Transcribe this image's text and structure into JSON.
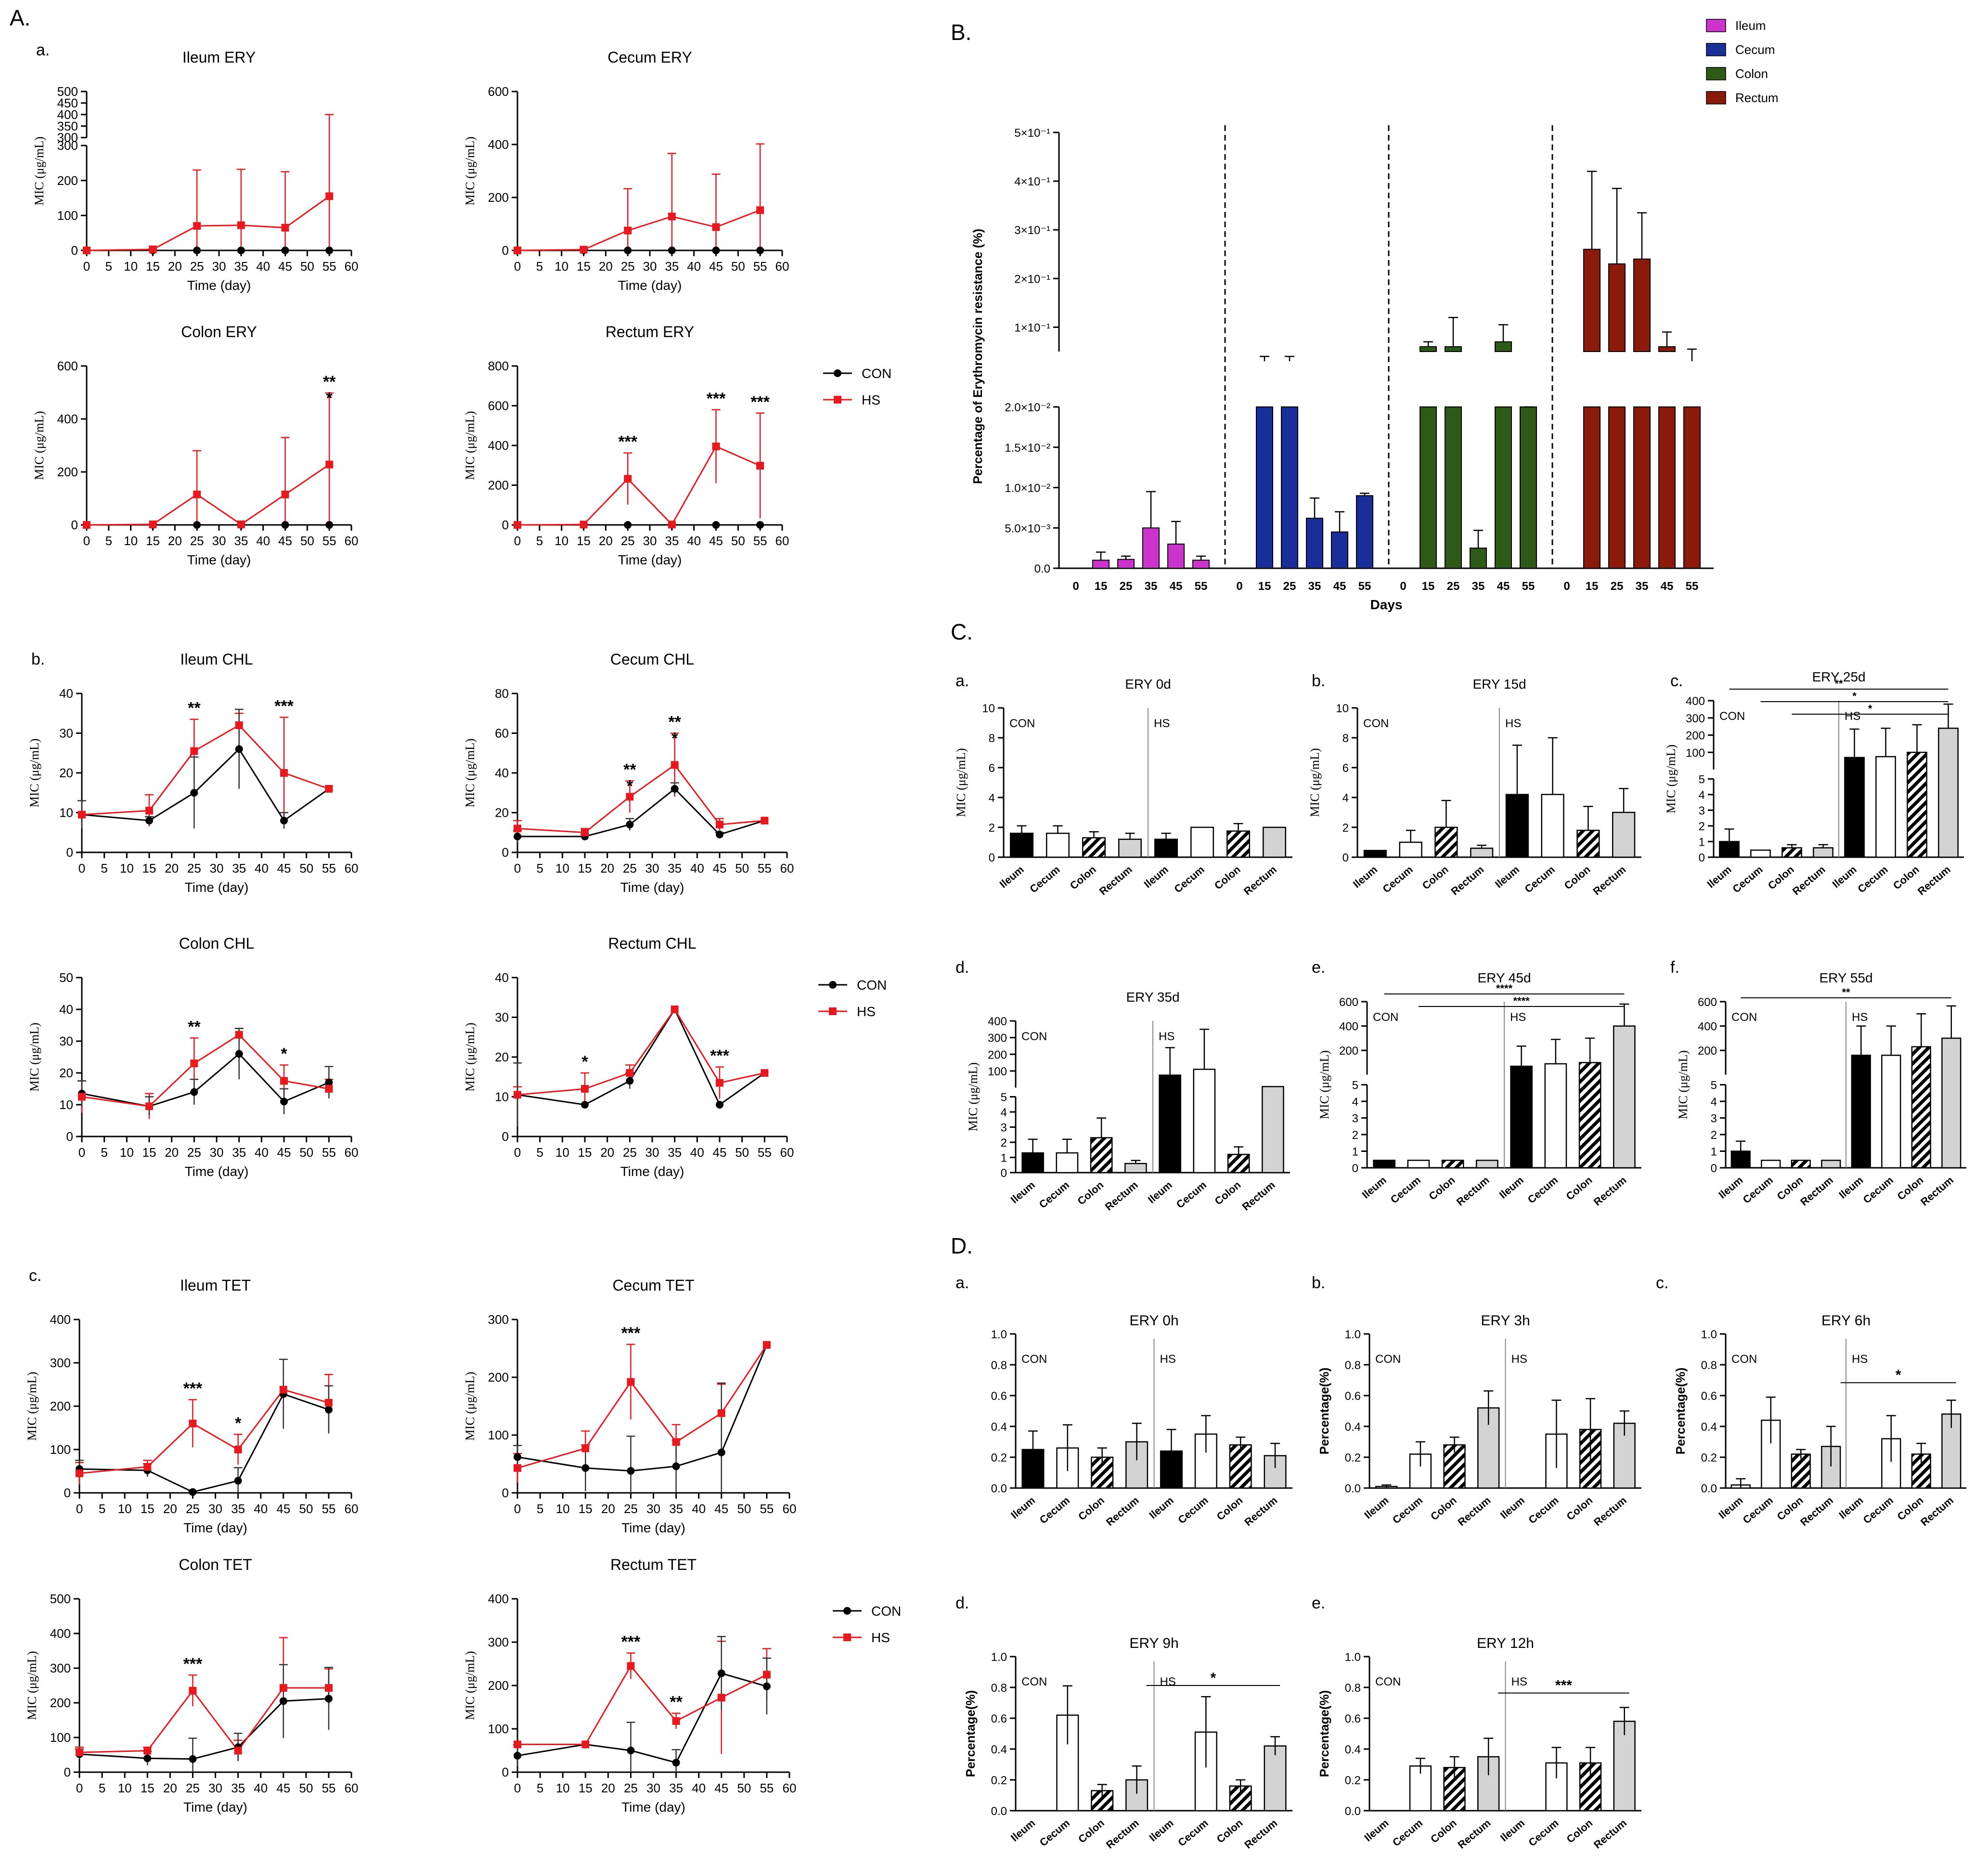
{
  "panels": {
    "A": "A.",
    "B": "B.",
    "C": "C.",
    "D": "D."
  },
  "sublabels": {
    "Aa": "a.",
    "Ab": "b.",
    "Ac": "c.",
    "Ca": "a.",
    "Cb": "b.",
    "Cc": "c.",
    "Cd": "d.",
    "Ce": "e.",
    "Cf": "f.",
    "Da": "a.",
    "Db": "b.",
    "Dc": "c.",
    "Dd": "d.",
    "De": "e."
  },
  "colors": {
    "con": "#000000",
    "hs": "#e8191e",
    "ileum": "#cc33cc",
    "cecum": "#1a2e99",
    "colon": "#2d5a17",
    "rectum": "#8b1a0a",
    "grey": "#d3d3d3"
  },
  "legends": [
    {
      "con": "CON",
      "hs": "HS"
    },
    {
      "con": "CON",
      "hs": "HS"
    },
    {
      "con": "CON",
      "hs": "HS"
    }
  ],
  "line_charts": [
    {
      "id": "ileum-ery",
      "title": "Ileum ERY",
      "xlabel": "Time  (day)",
      "ylabel": "MIC  (μg/mL)",
      "yticks": [
        "0",
        "100",
        "200",
        "300",
        "300",
        "350",
        "400",
        "450",
        "500"
      ],
      "ybreak": true,
      "con": [
        0,
        0,
        0,
        0,
        0,
        0
      ],
      "hs": [
        0,
        3,
        70,
        72,
        65,
        155
      ],
      "hs_err": [
        0,
        2,
        160,
        160,
        160,
        245
      ],
      "con_err": [
        0,
        0,
        0,
        0,
        0,
        0
      ],
      "stars": []
    },
    {
      "id": "cecum-ery",
      "title": "Cecum ERY",
      "xlabel": "Time  (day)",
      "ylabel": "MIC  (μg/mL)",
      "yticks": [
        "0",
        "200",
        "400",
        "600"
      ],
      "ymax": 600,
      "con": [
        0,
        0,
        0,
        0,
        0,
        0
      ],
      "hs": [
        0,
        3,
        75,
        128,
        88,
        152
      ],
      "hs_err": [
        0,
        2,
        158,
        238,
        200,
        250
      ],
      "con_err": [
        0,
        0,
        0,
        0,
        0,
        0
      ],
      "stars": []
    },
    {
      "id": "colon-ery",
      "title": "Colon ERY",
      "xlabel": "Time  (day)",
      "ylabel": "MIC  (μg/mL)",
      "yticks": [
        "0",
        "200",
        "400",
        "600"
      ],
      "ymax": 600,
      "con": [
        0,
        0,
        0,
        0,
        0,
        0
      ],
      "hs": [
        0,
        2,
        115,
        2,
        115,
        228
      ],
      "hs_err": [
        0,
        1,
        165,
        1,
        215,
        270
      ],
      "con_err": [
        0,
        0,
        0,
        0,
        0,
        0
      ],
      "stars": [
        {
          "i": 5,
          "t": "**"
        },
        {
          "i": 5,
          "t": "*"
        }
      ]
    },
    {
      "id": "rectum-ery",
      "title": "Rectum ERY",
      "xlabel": "Time  (day)",
      "ylabel": "MIC  (μg/mL)",
      "yticks": [
        "0",
        "200",
        "400",
        "600",
        "800"
      ],
      "ymax": 800,
      "con": [
        0,
        0,
        0,
        0,
        0,
        0
      ],
      "hs": [
        0,
        2,
        232,
        2,
        395,
        298
      ],
      "hs_err": [
        0,
        1,
        130,
        1,
        185,
        265
      ],
      "con_err": [
        0,
        0,
        0,
        0,
        0,
        0
      ],
      "stars": [
        {
          "i": 2,
          "t": "***"
        },
        {
          "i": 4,
          "t": "***"
        },
        {
          "i": 5,
          "t": "***"
        }
      ]
    },
    {
      "id": "ileum-chl",
      "title": "Ileum CHL",
      "xlabel": "Time  (day)",
      "ylabel": "MIC  (μg/mL)",
      "yticks": [
        "0",
        "10",
        "20",
        "30",
        "40"
      ],
      "ymax": 40,
      "con": [
        9.5,
        8,
        15,
        26,
        8,
        16
      ],
      "hs": [
        9.5,
        10.5,
        25.5,
        32,
        20,
        16
      ],
      "hs_err": [
        3.5,
        4,
        8,
        3,
        14,
        0
      ],
      "con_err": [
        3.5,
        1,
        9,
        10,
        2,
        0
      ],
      "stars": [
        {
          "i": 2,
          "t": "**"
        },
        {
          "i": 4,
          "t": "***"
        }
      ]
    },
    {
      "id": "cecum-chl",
      "title": "Cecum CHL",
      "xlabel": "Time  (day)",
      "ylabel": "MIC  (μg/mL)",
      "yticks": [
        "0",
        "20",
        "40",
        "60",
        "80"
      ],
      "ymax": 80,
      "con": [
        8,
        8,
        14,
        32,
        9,
        16
      ],
      "hs": [
        12,
        10,
        28,
        44,
        14,
        16
      ],
      "hs_err": [
        4,
        2,
        8,
        16,
        3,
        0
      ],
      "con_err": [
        3,
        1,
        3,
        3,
        1,
        0
      ],
      "stars": [
        {
          "i": 2,
          "t": "**"
        },
        {
          "i": 2,
          "t": "*"
        },
        {
          "i": 3,
          "t": "**"
        },
        {
          "i": 3,
          "t": "*"
        }
      ]
    },
    {
      "id": "colon-chl",
      "title": "Colon CHL",
      "xlabel": "Time  (day)",
      "ylabel": "MIC  (μg/mL)",
      "yticks": [
        "0",
        "10",
        "20",
        "30",
        "40",
        "50"
      ],
      "ymax": 50,
      "con": [
        13.5,
        9.5,
        14,
        26,
        11,
        17
      ],
      "hs": [
        12.5,
        9.5,
        23,
        32,
        17.5,
        15
      ],
      "hs_err": [
        5,
        4,
        8,
        2,
        5,
        3
      ],
      "con_err": [
        4,
        3,
        4,
        8,
        4,
        5
      ],
      "stars": [
        {
          "i": 2,
          "t": "**"
        },
        {
          "i": 4,
          "t": "*"
        }
      ]
    },
    {
      "id": "rectum-chl",
      "title": "Rectum CHL",
      "xlabel": "Time  (day)",
      "ylabel": "MIC  (μg/mL)",
      "yticks": [
        "0",
        "10",
        "20",
        "30",
        "40"
      ],
      "ymax": 40,
      "con": [
        10.5,
        8,
        14,
        32,
        8,
        16
      ],
      "hs": [
        10.5,
        12,
        16,
        32,
        13.5,
        16
      ],
      "hs_err": [
        2,
        4,
        2,
        0,
        4,
        0
      ],
      "con_err": [
        8,
        0,
        2,
        0,
        0,
        0
      ],
      "stars": [
        {
          "i": 1,
          "t": "*"
        },
        {
          "i": 4,
          "t": "***"
        }
      ]
    },
    {
      "id": "ileum-tet",
      "title": "Ileum TET",
      "xlabel": "Time  (day)",
      "ylabel": "MIC  (μg/mL)",
      "yticks": [
        "0",
        "100",
        "200",
        "300",
        "400"
      ],
      "ymax": 400,
      "con": [
        55,
        52,
        2,
        28,
        228,
        192
      ],
      "hs": [
        45,
        60,
        160,
        100,
        238,
        208
      ],
      "hs_err": [
        25,
        15,
        55,
        35,
        70,
        65
      ],
      "con_err": [
        20,
        15,
        2,
        30,
        80,
        55
      ],
      "stars": [
        {
          "i": 2,
          "t": "***"
        },
        {
          "i": 3,
          "t": "*"
        }
      ]
    },
    {
      "id": "cecum-tet",
      "title": "Cecum TET",
      "xlabel": "Time  (day)",
      "ylabel": "MIC  (μg/mL)",
      "yticks": [
        "0",
        "100",
        "200",
        "300"
      ],
      "ymax": 300,
      "con": [
        62,
        43,
        38,
        46,
        70,
        256
      ],
      "hs": [
        43,
        77,
        192,
        88,
        138,
        256
      ],
      "hs_err": [
        25,
        30,
        65,
        30,
        50,
        0
      ],
      "con_err": [
        20,
        40,
        60,
        45,
        120,
        0
      ],
      "stars": [
        {
          "i": 2,
          "t": "***"
        }
      ]
    },
    {
      "id": "colon-tet",
      "title": "Colon TET",
      "xlabel": "Time  (day)",
      "ylabel": "MIC  (μg/mL)",
      "yticks": [
        "0",
        "100",
        "200",
        "300",
        "400",
        "500"
      ],
      "ymax": 500,
      "con": [
        52,
        40,
        38,
        72,
        205,
        212
      ],
      "hs": [
        57,
        62,
        235,
        62,
        243,
        243
      ],
      "hs_err": [
        15,
        10,
        45,
        30,
        145,
        55
      ],
      "con_err": [
        15,
        20,
        60,
        40,
        105,
        90
      ],
      "stars": [
        {
          "i": 2,
          "t": "***"
        }
      ]
    },
    {
      "id": "rectum-tet",
      "title": "Rectum TET",
      "xlabel": "Time  (day)",
      "ylabel": "MIC  (μg/mL)",
      "yticks": [
        "0",
        "100",
        "200",
        "300",
        "400"
      ],
      "ymax": 400,
      "con": [
        38,
        64,
        50,
        22,
        228,
        198
      ],
      "hs": [
        64,
        64,
        245,
        118,
        172,
        225
      ],
      "hs_err": [
        0,
        0,
        30,
        18,
        130,
        60
      ],
      "con_err": [
        25,
        0,
        65,
        30,
        85,
        65
      ],
      "stars": [
        {
          "i": 2,
          "t": "***"
        },
        {
          "i": 3,
          "t": "**"
        }
      ]
    }
  ],
  "line_xticks": [
    "0",
    "5",
    "10",
    "15",
    "20",
    "25",
    "30",
    "35",
    "40",
    "45",
    "50",
    "55",
    "60"
  ],
  "bar_b": {
    "ylabel": "Percentage of Erythromycin resistance (%)",
    "xlabel": "Days",
    "xticks": [
      "0",
      "15",
      "25",
      "35",
      "45",
      "55"
    ],
    "lower_ticks": [
      "0.0",
      "5.0×10⁻³",
      "1.0×10⁻²",
      "1.5×10⁻²",
      "2.0×10⁻²"
    ],
    "upper_ticks": [
      "1×10⁻¹",
      "2×10⁻¹",
      "3×10⁻¹",
      "4×10⁻¹",
      "5×10⁻¹"
    ],
    "legend": [
      "Ileum",
      "Cecum",
      "Colon",
      "Rectum"
    ],
    "groups": [
      {
        "name": "Ileum",
        "values": [
          0,
          0.001,
          0.0011,
          0.005,
          0.003,
          0.001
        ],
        "err": [
          0,
          0.001,
          0.0004,
          0.0045,
          0.0028,
          0.0005
        ]
      },
      {
        "name": "Cecum",
        "values": [
          0,
          0.03,
          0.03,
          0.0062,
          0.0045,
          0.009
        ],
        "err": [
          0,
          0.01,
          0.01,
          0.0025,
          0.0025,
          0.0003
        ]
      },
      {
        "name": "Colon",
        "values": [
          0,
          0.06,
          0.06,
          0.0025,
          0.07,
          0.02
        ],
        "err": [
          0,
          0.01,
          0.06,
          0.0022,
          0.035,
          0.008
        ]
      },
      {
        "name": "Rectum",
        "values": [
          0,
          0.26,
          0.23,
          0.24,
          0.06,
          0.03
        ],
        "err": [
          0,
          0.16,
          0.155,
          0.095,
          0.03,
          0.025
        ]
      }
    ]
  },
  "bar_c": [
    {
      "id": "ery-0d",
      "title": "ERY 0d",
      "ylabel": "MIC  (μg/mL)",
      "broken": false,
      "yticks": [
        "0",
        "2",
        "4",
        "6",
        "8",
        "10"
      ],
      "ymax": 10,
      "values": [
        1.6,
        1.6,
        1.3,
        1.2,
        1.2,
        2.0,
        1.75,
        2.0
      ],
      "err": [
        0.5,
        0.5,
        0.4,
        0.4,
        0.4,
        0,
        0.5,
        0
      ],
      "sig": []
    },
    {
      "id": "ery-15d",
      "title": "ERY 15d",
      "ylabel": "MIC  (μg/mL)",
      "broken": false,
      "yticks": [
        "0",
        "2",
        "4",
        "6",
        "8",
        "10"
      ],
      "ymax": 10,
      "values": [
        0.45,
        1.0,
        2.0,
        0.6,
        4.2,
        4.2,
        1.8,
        3.0
      ],
      "err": [
        0,
        0.8,
        1.8,
        0.2,
        3.3,
        3.8,
        1.6,
        1.6
      ],
      "sig": []
    },
    {
      "id": "ery-25d",
      "title": "ERY 25d",
      "ylabel": "MIC  (μg/mL)",
      "broken": true,
      "yticks_low": [
        "0",
        "1",
        "2",
        "3",
        "4",
        "5"
      ],
      "yticks_high": [
        "100",
        "200",
        "300",
        "400"
      ],
      "values": [
        1.0,
        0.45,
        0.6,
        0.6,
        70,
        75,
        100,
        240
      ],
      "err": [
        0.8,
        0,
        0.2,
        0.2,
        165,
        165,
        160,
        140
      ],
      "sig": [
        {
          "a": 0,
          "b": 7,
          "t": "**"
        },
        {
          "a": 1,
          "b": 7,
          "t": "*"
        },
        {
          "a": 2,
          "b": 7,
          "t": "*"
        }
      ]
    },
    {
      "id": "ery-35d",
      "title": "ERY 35d",
      "ylabel": "MIC  (μg/mL)",
      "broken": true,
      "yticks_low": [
        "0",
        "1",
        "2",
        "3",
        "4",
        "5"
      ],
      "yticks_high": [
        "100",
        "200",
        "300",
        "400"
      ],
      "values": [
        1.3,
        1.3,
        2.3,
        0.6,
        75,
        110,
        1.2,
        6.5
      ],
      "err": [
        0.9,
        0.9,
        1.3,
        0.2,
        165,
        240,
        0.5,
        0
      ],
      "sig": []
    },
    {
      "id": "ery-45d",
      "title": "ERY 45d",
      "ylabel": "MIC  (μg/mL)",
      "broken": true,
      "yticks_low": [
        "0",
        "1",
        "2",
        "3",
        "4",
        "5"
      ],
      "yticks_high": [
        "200",
        "400",
        "600"
      ],
      "values": [
        0.45,
        0.45,
        0.45,
        0.45,
        70,
        90,
        100,
        400
      ],
      "err": [
        0,
        0,
        0,
        0,
        165,
        200,
        200,
        180
      ],
      "sig": [
        {
          "a": 0,
          "b": 7,
          "t": "****"
        },
        {
          "a": 1,
          "b": 7,
          "t": "****"
        }
      ]
    },
    {
      "id": "ery-55d",
      "title": "ERY 55d",
      "ylabel": "MIC  (μg/mL)",
      "broken": true,
      "yticks_low": [
        "0",
        "1",
        "2",
        "3",
        "4",
        "5"
      ],
      "yticks_high": [
        "200",
        "400",
        "600"
      ],
      "values": [
        1.0,
        0.45,
        0.45,
        0.45,
        160,
        160,
        230,
        300
      ],
      "err": [
        0.6,
        0,
        0,
        0,
        240,
        240,
        270,
        265
      ],
      "sig": [
        {
          "a": 0,
          "b": 7,
          "t": "**"
        }
      ]
    }
  ],
  "bar_d": [
    {
      "id": "ery-0h",
      "title": "ERY 0h",
      "ylabel": "",
      "values": [
        0.25,
        0.26,
        0.2,
        0.3,
        0.24,
        0.35,
        0.28,
        0.21
      ],
      "err": [
        0.12,
        0.15,
        0.06,
        0.12,
        0.14,
        0.12,
        0.05,
        0.08
      ],
      "sig": null
    },
    {
      "id": "ery-3h",
      "title": "ERY 3h",
      "ylabel": "Percentage(%)",
      "values": [
        0.01,
        0.22,
        0.28,
        0.52,
        0.0,
        0.35,
        0.38,
        0.42
      ],
      "err": [
        0.01,
        0.08,
        0.05,
        0.11,
        0,
        0.22,
        0.2,
        0.08
      ],
      "sig": null
    },
    {
      "id": "ery-6h",
      "title": "ERY 6h",
      "ylabel": "Percentage(%)",
      "values": [
        0.02,
        0.44,
        0.22,
        0.27,
        0.0,
        0.32,
        0.22,
        0.48
      ],
      "err": [
        0.04,
        0.15,
        0.03,
        0.13,
        0,
        0.15,
        0.07,
        0.09
      ],
      "sig": {
        "a": 3,
        "b": 7,
        "t": "*"
      }
    },
    {
      "id": "ery-9h",
      "title": "ERY 9h",
      "ylabel": "Percentage(%)",
      "values": [
        0.0,
        0.62,
        0.13,
        0.2,
        0.0,
        0.51,
        0.16,
        0.42
      ],
      "err": [
        0,
        0.19,
        0.04,
        0.09,
        0,
        0.23,
        0.04,
        0.06
      ],
      "sig": {
        "a": 3,
        "b": 7,
        "t": "*"
      }
    },
    {
      "id": "ery-12h",
      "title": "ERY 12h",
      "ylabel": "Percentage(%)",
      "values": [
        0.0,
        0.29,
        0.28,
        0.35,
        0.0,
        0.31,
        0.31,
        0.58
      ],
      "err": [
        0,
        0.05,
        0.07,
        0.12,
        0,
        0.1,
        0.1,
        0.09
      ],
      "sig": {
        "a": 3,
        "b": 7,
        "t": "***"
      }
    }
  ],
  "bar_categories": [
    "Ileum",
    "Cecum",
    "Colon",
    "Rectum",
    "Ileum",
    "Cecum",
    "Colon",
    "Rectum"
  ],
  "d_yticks": [
    "0.0",
    "0.2",
    "0.4",
    "0.6",
    "0.8",
    "1.0"
  ],
  "group_labels": {
    "con": "CON",
    "hs": "HS"
  }
}
